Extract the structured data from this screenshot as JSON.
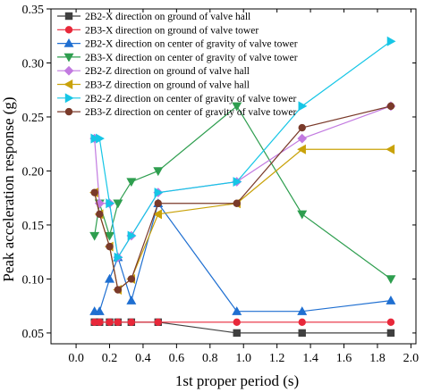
{
  "chart_data": {
    "type": "line",
    "title": "",
    "xlabel": "1st proper period (s)",
    "ylabel": "Peak acceleration response (g)",
    "xlim": [
      -0.15,
      2.03
    ],
    "ylim": [
      0.04,
      0.35
    ],
    "x_ticks": [
      "0.0",
      "0.2",
      "0.4",
      "0.6",
      "0.8",
      "1.0",
      "1.2",
      "1.4",
      "1.6",
      "1.8",
      "2.0"
    ],
    "y_ticks": [
      "0.05",
      "0.10",
      "0.15",
      "0.20",
      "0.25",
      "0.30",
      "0.35"
    ],
    "grid": false,
    "legend_position": "top-left inside",
    "x": [
      0.11,
      0.14,
      0.2,
      0.25,
      0.33,
      0.49,
      0.96,
      1.35,
      1.88
    ],
    "series": [
      {
        "name": "2B2-X direction on ground of valve hall",
        "color": "#404040",
        "marker": "square",
        "values": [
          0.06,
          0.06,
          0.06,
          0.06,
          0.06,
          0.06,
          0.05,
          0.05,
          0.05
        ]
      },
      {
        "name": "2B3-X direction on ground of valve tower",
        "color": "#e8283a",
        "marker": "circle",
        "values": [
          0.06,
          0.06,
          0.06,
          0.06,
          0.06,
          0.06,
          0.06,
          0.06,
          0.06
        ]
      },
      {
        "name": "2B2-X direction on center of gravity of valve tower",
        "color": "#1f6fd1",
        "marker": "triangle-up",
        "values": [
          0.07,
          0.07,
          0.1,
          0.12,
          0.08,
          0.17,
          0.07,
          0.07,
          0.08
        ]
      },
      {
        "name": "2B3-X direction on center of gravity of valve tower",
        "color": "#2e9e4f",
        "marker": "triangle-down",
        "values": [
          0.14,
          0.17,
          0.14,
          0.17,
          0.19,
          0.2,
          0.26,
          0.16,
          0.1
        ]
      },
      {
        "name": "2B2-Z direction on ground of valve hall",
        "color": "#c27ae0",
        "marker": "diamond",
        "values": [
          0.23,
          0.17,
          0.17,
          0.12,
          0.14,
          0.18,
          0.19,
          0.23,
          0.26
        ]
      },
      {
        "name": "2B3-Z direction on ground of valve hall",
        "color": "#c9a20a",
        "marker": "triangle-left",
        "values": [
          0.18,
          0.16,
          0.13,
          0.09,
          0.1,
          0.16,
          0.17,
          0.22,
          0.22
        ]
      },
      {
        "name": "2B2-Z direction on center of gravity of valve tower",
        "color": "#16c6e6",
        "marker": "triangle-right",
        "values": [
          0.23,
          0.23,
          0.17,
          0.12,
          0.14,
          0.18,
          0.19,
          0.26,
          0.32
        ]
      },
      {
        "name": "2B3-Z direction on center of gravity of valve tower",
        "color": "#7a3a2a",
        "marker": "circle",
        "values": [
          0.18,
          0.16,
          0.13,
          0.09,
          0.1,
          0.17,
          0.17,
          0.24,
          0.26
        ]
      }
    ]
  }
}
